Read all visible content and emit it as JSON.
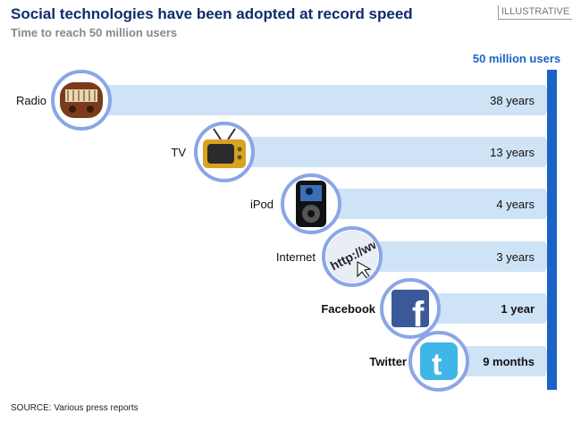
{
  "header": {
    "title": "Social technologies have been adopted at record speed",
    "subtitle": "Time to reach 50 million users",
    "badge": "ILLUSTRATIVE"
  },
  "finish_label": "50 million users",
  "footer": {
    "source": "SOURCE: Various press reports"
  },
  "colors": {
    "bar": "#cfe3f7",
    "finish_line": "#1a63c4",
    "title": "#0f2c6e",
    "circle_border": "#8aa6e6"
  },
  "chart_data": {
    "type": "bar",
    "title": "Social technologies have been adopted at record speed",
    "subtitle": "Time to reach 50 million users",
    "categories": [
      "Radio",
      "TV",
      "iPod",
      "Internet",
      "Facebook",
      "Twitter"
    ],
    "value_labels": [
      "38 years",
      "13 years",
      "4 years",
      "3 years",
      "1 year",
      "9 months"
    ],
    "values_years": [
      38,
      13,
      4,
      3,
      1,
      0.75
    ],
    "icons": [
      "radio-icon",
      "tv-icon",
      "ipod-icon",
      "internet-icon",
      "facebook-icon",
      "twitter-icon"
    ],
    "bold_categories": [
      "Facebook",
      "Twitter"
    ],
    "xlabel": "",
    "ylabel": ""
  }
}
